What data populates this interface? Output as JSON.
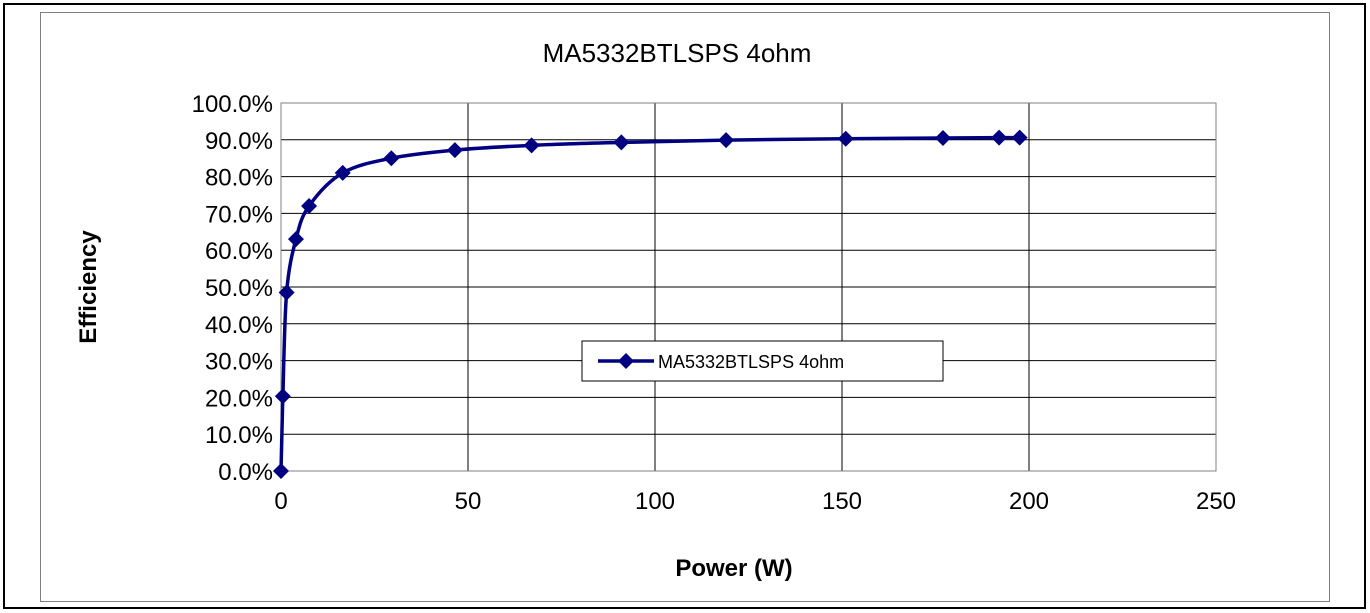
{
  "chart_data": {
    "type": "line",
    "title": "MA5332BTLSPS 4ohm",
    "xlabel": "Power (W)",
    "ylabel": "Efficiency",
    "xlim": [
      0,
      250
    ],
    "ylim": [
      0,
      1.0
    ],
    "x_ticks": [
      "0",
      "50",
      "100",
      "150",
      "200",
      "250"
    ],
    "y_ticks": [
      "0.0%",
      "10.0%",
      "20.0%",
      "30.0%",
      "40.0%",
      "50.0%",
      "60.0%",
      "70.0%",
      "80.0%",
      "90.0%",
      "100.0%"
    ],
    "grid": true,
    "legend_position": "center-right",
    "series": [
      {
        "name": "MA5332BTLSPS 4ohm",
        "color": "#000080",
        "marker": "diamond",
        "x": [
          0,
          0.5,
          1.5,
          4,
          7.5,
          16.5,
          29.5,
          46.5,
          67,
          91,
          119,
          151,
          177,
          192,
          197.5
        ],
        "y": [
          0.0,
          0.203,
          0.485,
          0.63,
          0.72,
          0.81,
          0.85,
          0.872,
          0.885,
          0.893,
          0.899,
          0.903,
          0.905,
          0.906,
          0.906
        ]
      }
    ]
  }
}
